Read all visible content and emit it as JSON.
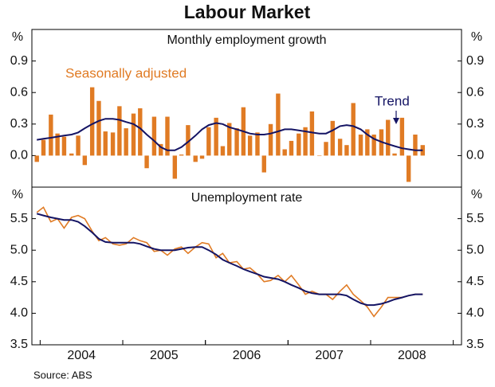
{
  "title": "Labour Market",
  "source": "Source: ABS",
  "chart_data": [
    {
      "type": "bar",
      "title": "Monthly employment growth",
      "y_unit": "%",
      "x": [
        2003.96,
        2004.04,
        2004.13,
        2004.21,
        2004.29,
        2004.38,
        2004.46,
        2004.54,
        2004.63,
        2004.71,
        2004.79,
        2004.88,
        2004.96,
        2005.04,
        2005.13,
        2005.21,
        2005.29,
        2005.38,
        2005.46,
        2005.54,
        2005.63,
        2005.71,
        2005.79,
        2005.88,
        2005.96,
        2006.04,
        2006.13,
        2006.21,
        2006.29,
        2006.38,
        2006.46,
        2006.54,
        2006.63,
        2006.71,
        2006.79,
        2006.88,
        2006.96,
        2007.04,
        2007.13,
        2007.21,
        2007.29,
        2007.38,
        2007.46,
        2007.54,
        2007.63,
        2007.71,
        2007.79,
        2007.88,
        2007.96,
        2008.04,
        2008.13,
        2008.21,
        2008.29,
        2008.38,
        2008.46,
        2008.54,
        2008.63
      ],
      "xlim": [
        2003.9,
        2009.1
      ],
      "ylim": [
        -0.3,
        1.2
      ],
      "yticks": [
        {
          "value": 0,
          "label": "0.0"
        },
        0.3,
        0.6,
        0.9
      ],
      "series": [
        {
          "name": "Seasonally adjusted",
          "type": "bar",
          "color": "#e07b24",
          "values": [
            -0.06,
            0.15,
            0.39,
            0.21,
            0.18,
            0.02,
            0.19,
            -0.09,
            0.65,
            0.52,
            0.23,
            0.22,
            0.47,
            0.26,
            0.4,
            0.45,
            -0.12,
            0.37,
            0.11,
            0.37,
            -0.22,
            0.01,
            0.29,
            -0.06,
            -0.03,
            0.27,
            0.36,
            0.09,
            0.31,
            0.26,
            0.46,
            0.19,
            0.22,
            -0.16,
            0.3,
            0.59,
            0.06,
            0.14,
            0.21,
            0.27,
            0.42,
            0.0,
            0.13,
            0.33,
            0.16,
            0.1,
            0.5,
            0.2,
            0.25,
            0.2,
            0.25,
            0.34,
            0.02,
            0.36,
            -0.25,
            0.2,
            0.1
          ]
        },
        {
          "name": "Trend",
          "type": "line",
          "color": "#141464",
          "values": [
            0.15,
            0.16,
            0.17,
            0.18,
            0.19,
            0.2,
            0.22,
            0.26,
            0.3,
            0.33,
            0.35,
            0.35,
            0.34,
            0.32,
            0.3,
            0.26,
            0.2,
            0.14,
            0.08,
            0.05,
            0.05,
            0.08,
            0.13,
            0.19,
            0.25,
            0.29,
            0.31,
            0.3,
            0.27,
            0.25,
            0.23,
            0.21,
            0.2,
            0.2,
            0.21,
            0.23,
            0.25,
            0.25,
            0.24,
            0.23,
            0.22,
            0.21,
            0.21,
            0.24,
            0.28,
            0.29,
            0.28,
            0.25,
            0.2,
            0.16,
            0.13,
            0.11,
            0.09,
            0.07,
            0.06,
            0.05,
            0.05
          ]
        }
      ]
    },
    {
      "type": "line",
      "title": "Unemployment rate",
      "y_unit": "%",
      "x": [
        2003.96,
        2004.04,
        2004.13,
        2004.21,
        2004.29,
        2004.38,
        2004.46,
        2004.54,
        2004.63,
        2004.71,
        2004.79,
        2004.88,
        2004.96,
        2005.04,
        2005.13,
        2005.21,
        2005.29,
        2005.38,
        2005.46,
        2005.54,
        2005.63,
        2005.71,
        2005.79,
        2005.88,
        2005.96,
        2006.04,
        2006.13,
        2006.21,
        2006.29,
        2006.38,
        2006.46,
        2006.54,
        2006.63,
        2006.71,
        2006.79,
        2006.88,
        2006.96,
        2007.04,
        2007.13,
        2007.21,
        2007.29,
        2007.38,
        2007.46,
        2007.54,
        2007.63,
        2007.71,
        2007.79,
        2007.88,
        2007.96,
        2008.04,
        2008.13,
        2008.21,
        2008.29,
        2008.38,
        2008.46,
        2008.54,
        2008.63
      ],
      "xlim": [
        2003.9,
        2009.1
      ],
      "xticks": [
        {
          "value": 2004.5,
          "label": "2004"
        },
        {
          "value": 2005.5,
          "label": "2005"
        },
        {
          "value": 2006.5,
          "label": "2006"
        },
        {
          "value": 2007.5,
          "label": "2007"
        },
        {
          "value": 2008.5,
          "label": "2008"
        }
      ],
      "ylim": [
        3.5,
        6.0
      ],
      "yticks": [
        3.5,
        {
          "value": 4,
          "label": "4.0"
        },
        4.5,
        {
          "value": 5,
          "label": "5.0"
        },
        5.5
      ],
      "series": [
        {
          "color": "#e07b24",
          "values": [
            5.6,
            5.68,
            5.45,
            5.5,
            5.35,
            5.52,
            5.55,
            5.5,
            5.3,
            5.15,
            5.2,
            5.1,
            5.08,
            5.1,
            5.2,
            5.15,
            5.12,
            4.98,
            5.0,
            4.92,
            5.02,
            5.05,
            4.95,
            5.05,
            5.12,
            5.1,
            4.88,
            4.95,
            4.8,
            4.82,
            4.7,
            4.72,
            4.62,
            4.5,
            4.52,
            4.6,
            4.5,
            4.6,
            4.45,
            4.3,
            4.35,
            4.3,
            4.3,
            4.22,
            4.35,
            4.45,
            4.3,
            4.2,
            4.1,
            3.95,
            4.1,
            4.25,
            4.25,
            4.25,
            4.28,
            4.3,
            4.3
          ]
        },
        {
          "color": "#141464",
          "values": [
            5.58,
            5.55,
            5.52,
            5.5,
            5.48,
            5.48,
            5.45,
            5.38,
            5.28,
            5.18,
            5.13,
            5.12,
            5.12,
            5.12,
            5.12,
            5.1,
            5.06,
            5.02,
            5.0,
            5.0,
            5.0,
            5.02,
            5.04,
            5.05,
            5.05,
            5.0,
            4.93,
            4.85,
            4.8,
            4.75,
            4.7,
            4.66,
            4.62,
            4.58,
            4.56,
            4.54,
            4.5,
            4.45,
            4.4,
            4.35,
            4.32,
            4.3,
            4.3,
            4.3,
            4.3,
            4.28,
            4.22,
            4.16,
            4.13,
            4.13,
            4.15,
            4.18,
            4.22,
            4.25,
            4.28,
            4.3,
            4.3
          ]
        }
      ]
    }
  ]
}
